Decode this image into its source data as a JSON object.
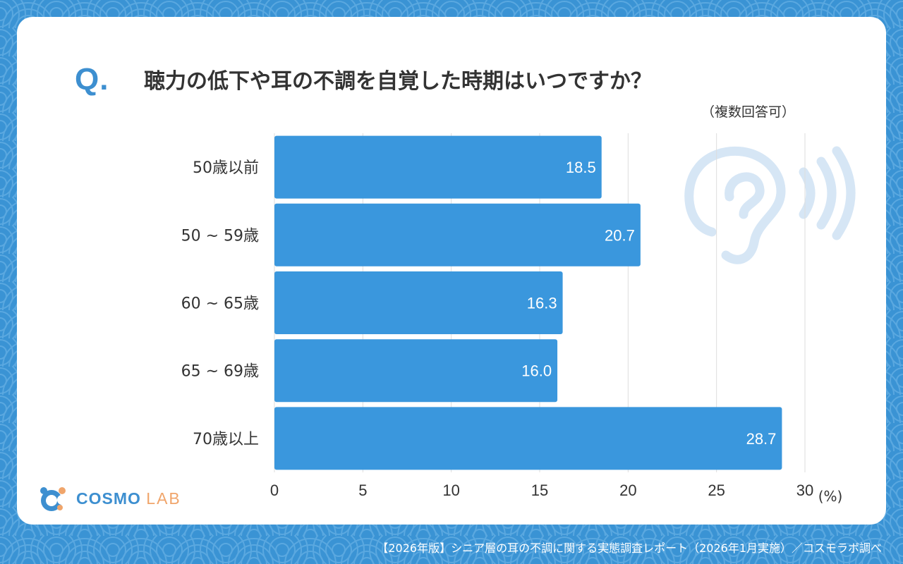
{
  "question": {
    "mark": "Q.",
    "text": "聴力の低下や耳の不調を自覚した時期はいつですか？",
    "note": "（複数回答可）"
  },
  "chart_data": {
    "type": "bar",
    "orientation": "horizontal",
    "title": "聴力の低下や耳の不調を自覚した時期はいつですか？",
    "categories": [
      "50歳以前",
      "50 ~ 59歳",
      "60 ~ 65歳",
      "65 ~ 69歳",
      "70歳以上"
    ],
    "values": [
      18.5,
      20.7,
      16.3,
      16.0,
      28.7
    ],
    "value_labels": [
      "18.5",
      "20.7",
      "16.3",
      "16.0",
      "28.7"
    ],
    "xlim": [
      0,
      30
    ],
    "xticks": [
      0,
      5,
      10,
      15,
      20,
      25,
      30
    ],
    "xlabel": "(%)",
    "ylabel": "",
    "grid": true,
    "bar_color": "#3a97dd"
  },
  "logo": {
    "name": "COSMO",
    "suffix": "LAB"
  },
  "footer": "【2026年版】シニア層の耳の不調に関する実態調査レポート（2026年1月実施）／コスモラボ調べ",
  "colors": {
    "background": "#3a93d4",
    "card": "#ffffff",
    "accent": "#3d8fd0",
    "ear_icon": "#d6e6f5",
    "logo_orange": "#f0a56b"
  },
  "icons": {
    "illustration": "ear-icon",
    "logo": "cosmo-lab-logo-icon"
  }
}
